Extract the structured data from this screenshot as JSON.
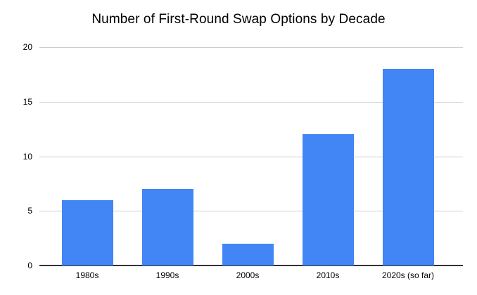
{
  "chart_data": {
    "type": "bar",
    "title": "Number of First-Round Swap Options by Decade",
    "categories": [
      "1980s",
      "1990s",
      "2000s",
      "2010s",
      "2020s (so far)"
    ],
    "values": [
      6,
      7,
      2,
      12,
      18
    ],
    "xlabel": "",
    "ylabel": "",
    "ylim": [
      0,
      20
    ],
    "yticks": [
      0,
      5,
      10,
      15,
      20
    ],
    "grid": true,
    "legend_position": "none",
    "colors": {
      "bar": "#4285F4",
      "gridline": "#cccccc",
      "baseline": "#333333",
      "text": "#000000",
      "background": "#ffffff"
    }
  }
}
